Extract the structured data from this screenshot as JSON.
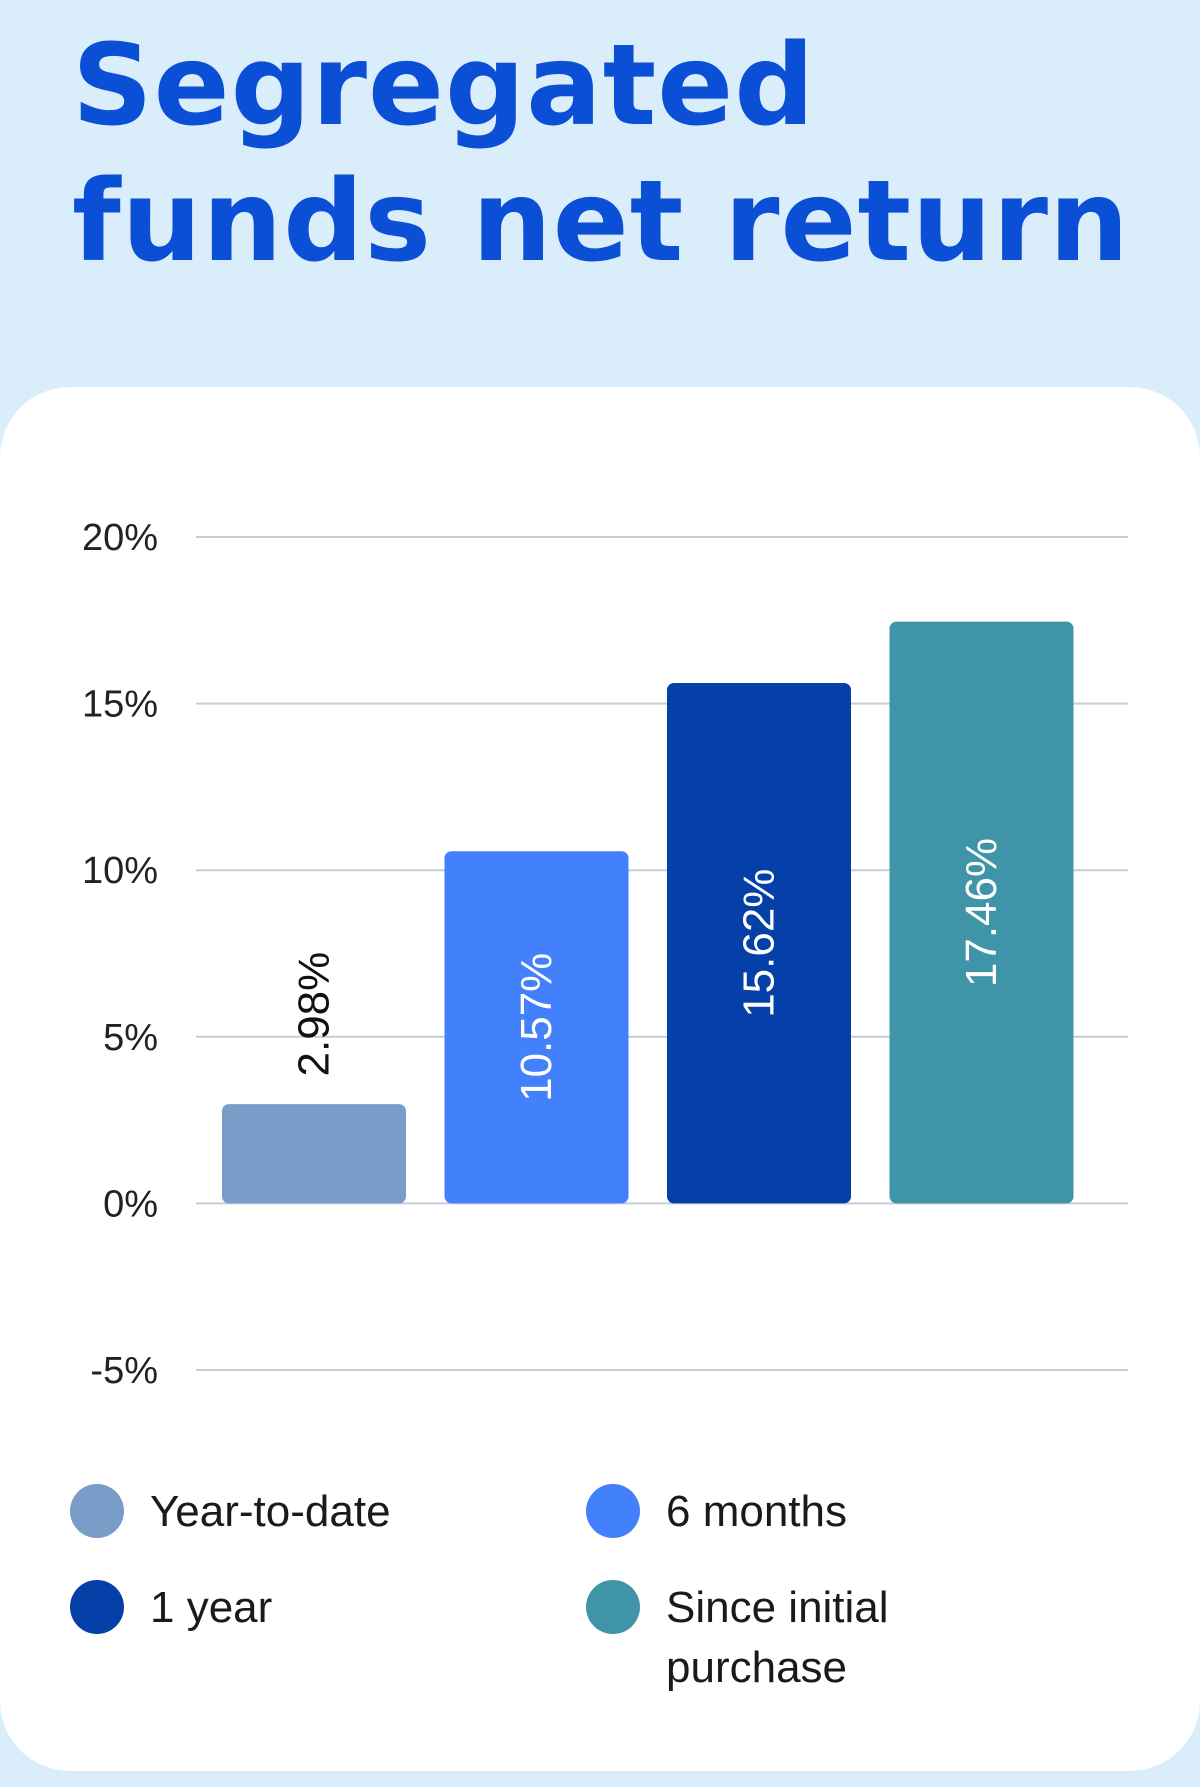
{
  "title": {
    "line1": "Segregated",
    "line2": "funds net return"
  },
  "colors": {
    "background": "#d9edfb",
    "title": "#0a4fd6",
    "grid": "#c8ccd4"
  },
  "chart_data": {
    "type": "bar",
    "title": "Segregated funds net return",
    "xlabel": "",
    "ylabel": "",
    "ylim": [
      -5,
      20
    ],
    "yticks": [
      20,
      15,
      10,
      5,
      0,
      -5
    ],
    "ytick_labels": [
      "20%",
      "15%",
      "10%",
      "5%",
      "0%",
      "-5%"
    ],
    "grid": true,
    "legend_position": "bottom",
    "categories": [
      "Year-to-date",
      "6 months",
      "1 year",
      "Since initial purchase"
    ],
    "values": [
      2.98,
      10.57,
      15.62,
      17.46
    ],
    "value_labels": [
      "2.98%",
      "10.57%",
      "15.62%",
      "17.46%"
    ],
    "bar_colors": [
      "#7a9cc8",
      "#4280fc",
      "#0440a8",
      "#4094a8"
    ],
    "label_colors": [
      "#111111",
      "#ffffff",
      "#ffffff",
      "#ffffff"
    ]
  },
  "legend": [
    {
      "label": "Year-to-date",
      "color": "#7a9cc8"
    },
    {
      "label": "6 months",
      "color": "#4280fc"
    },
    {
      "label": "1 year",
      "color": "#0440a8"
    },
    {
      "label": "Since initial purchase",
      "color": "#4094a8"
    }
  ]
}
